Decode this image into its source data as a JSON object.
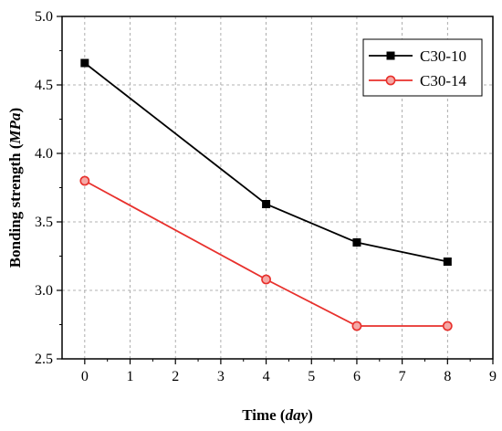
{
  "chart_data": {
    "type": "line",
    "title": "",
    "xlabel": "Time",
    "xlabel_unit": "day",
    "ylabel": "Bonding strength",
    "ylabel_unit": "MPa",
    "xlim": [
      -0.5,
      9
    ],
    "ylim": [
      2.5,
      5.0
    ],
    "x_ticks": [
      0,
      1,
      2,
      3,
      4,
      5,
      6,
      7,
      8,
      9
    ],
    "y_ticks": [
      2.5,
      3.0,
      3.5,
      4.0,
      4.5,
      5.0
    ],
    "x_tick_labels": [
      "0",
      "1",
      "2",
      "3",
      "4",
      "5",
      "6",
      "7",
      "8",
      "9"
    ],
    "y_tick_labels": [
      "2.5",
      "3.0",
      "3.5",
      "4.0",
      "4.5",
      "5.0"
    ],
    "grid": true,
    "legend_position": "top-right",
    "series": [
      {
        "name": "C30-10",
        "color": "#000000",
        "marker": "square",
        "x": [
          0,
          4,
          6,
          8
        ],
        "y": [
          4.66,
          3.63,
          3.35,
          3.21
        ]
      },
      {
        "name": "C30-14",
        "color": "#e8302c",
        "marker": "circle",
        "x": [
          0,
          4,
          6,
          8
        ],
        "y": [
          3.8,
          3.08,
          2.74,
          2.74
        ]
      }
    ]
  }
}
